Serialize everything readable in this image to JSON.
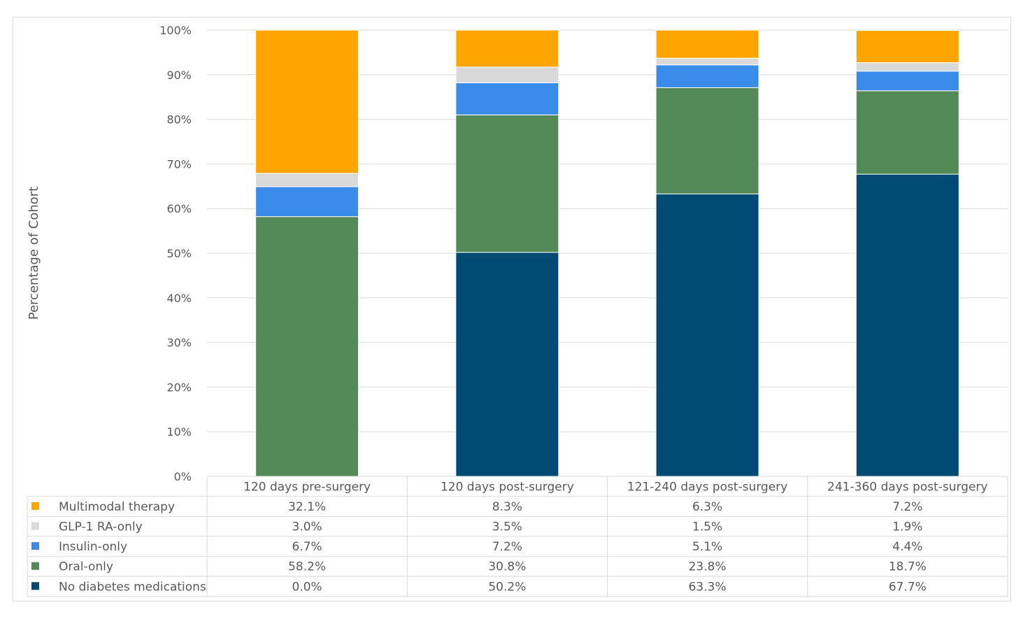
{
  "chart_data": {
    "type": "bar",
    "stacked": true,
    "ylabel": "Percentage of Cohort",
    "ylim": [
      0,
      100
    ],
    "yticks": [
      "0%",
      "10%",
      "20%",
      "30%",
      "40%",
      "50%",
      "60%",
      "70%",
      "80%",
      "90%",
      "100%"
    ],
    "grid": true,
    "legend_placement": "data-table-left",
    "categories": [
      "120 days pre-surgery",
      "120 days post-surgery",
      "121-240 days post-surgery",
      "241-360 days post-surgery"
    ],
    "series": [
      {
        "name": "Multimodal therapy",
        "color": "#FFA500",
        "values": [
          32.1,
          8.3,
          6.3,
          7.2
        ],
        "labels": [
          "32.1%",
          "8.3%",
          "6.3%",
          "7.2%"
        ]
      },
      {
        "name": "GLP-1 RA-only",
        "color": "#D9D9D9",
        "values": [
          3.0,
          3.5,
          1.5,
          1.9
        ],
        "labels": [
          "3.0%",
          "3.5%",
          "1.5%",
          "1.9%"
        ]
      },
      {
        "name": "Insulin-only",
        "color": "#3A8AE8",
        "values": [
          6.7,
          7.2,
          5.1,
          4.4
        ],
        "labels": [
          "6.7%",
          "7.2%",
          "5.1%",
          "4.4%"
        ]
      },
      {
        "name": "Oral-only",
        "color": "#538957",
        "values": [
          58.2,
          30.8,
          23.8,
          18.7
        ],
        "labels": [
          "58.2%",
          "30.8%",
          "23.8%",
          "18.7%"
        ]
      },
      {
        "name": "No diabetes medications",
        "color": "#004A73",
        "values": [
          0.0,
          50.2,
          63.3,
          67.7
        ],
        "labels": [
          "0.0%",
          "50.2%",
          "63.3%",
          "67.7%"
        ]
      }
    ]
  }
}
